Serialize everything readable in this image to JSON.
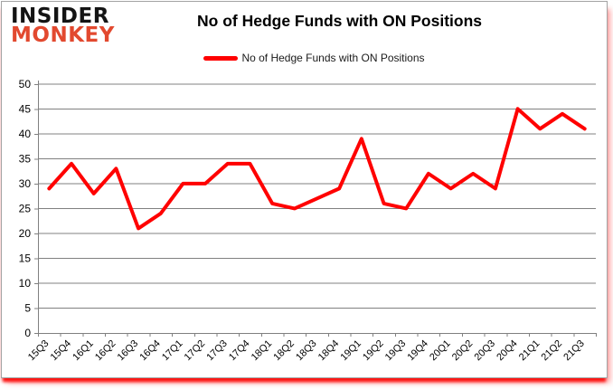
{
  "logo": {
    "line1": "INSIDER",
    "line2": "MONKEY"
  },
  "header": {
    "title": "No of Hedge Funds with ON Positions"
  },
  "legend": {
    "label": "No of Hedge Funds with ON Positions"
  },
  "colors": {
    "line": "#ff0000",
    "grid": "#808080",
    "axis": "#808080",
    "tick_label": "#000000",
    "logo_black": "#141414",
    "logo_red": "#e2492f",
    "border_glow": "#fc0d0c"
  },
  "chart_data": {
    "type": "line",
    "title": "No of Hedge Funds with ON Positions",
    "series_name": "No of Hedge Funds with ON Positions",
    "categories": [
      "15Q3",
      "15Q4",
      "16Q1",
      "16Q2",
      "16Q3",
      "16Q4",
      "17Q1",
      "17Q2",
      "17Q3",
      "17Q4",
      "18Q1",
      "18Q2",
      "18Q3",
      "18Q4",
      "19Q1",
      "19Q2",
      "19Q3",
      "19Q4",
      "20Q1",
      "20Q2",
      "20Q3",
      "20Q4",
      "21Q1",
      "21Q2",
      "21Q3"
    ],
    "values": [
      29,
      34,
      28,
      33,
      21,
      24,
      30,
      30,
      34,
      34,
      26,
      25,
      27,
      29,
      39,
      26,
      25,
      32,
      29,
      32,
      29,
      45,
      41,
      44,
      41
    ],
    "xlabel": "",
    "ylabel": "",
    "ylim": [
      0,
      50
    ],
    "ytick_step": 5,
    "grid": true,
    "legend_position": "top",
    "line_color": "#ff0000"
  }
}
